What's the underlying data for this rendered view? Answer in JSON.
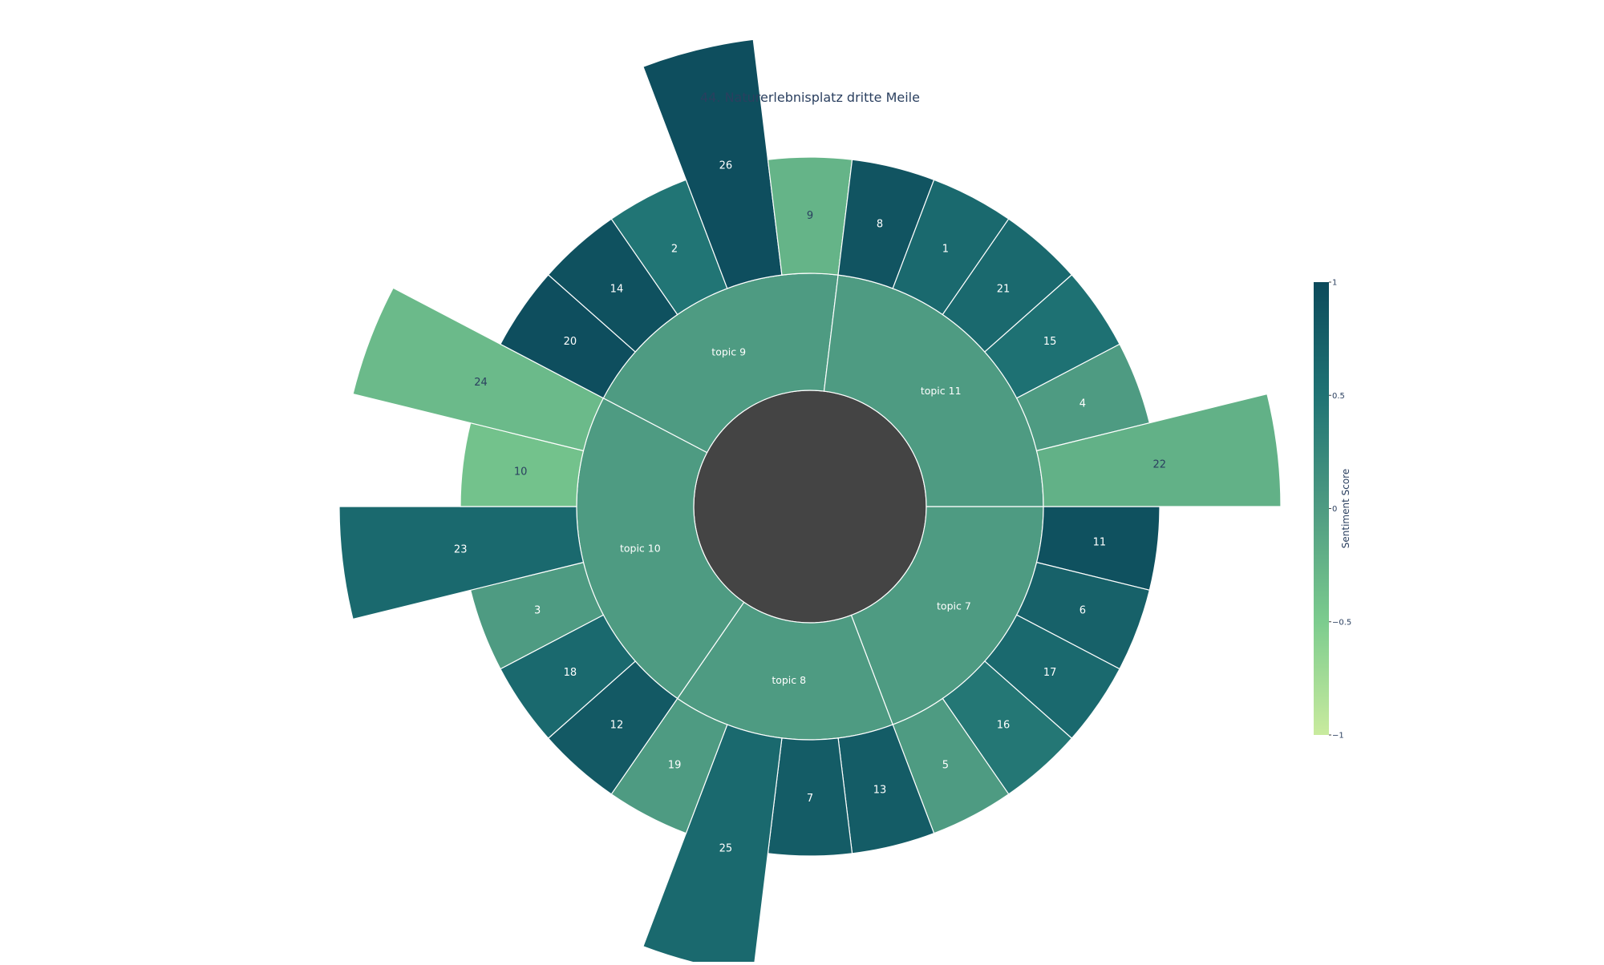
{
  "chart_data": {
    "type": "sunburst",
    "title": "44. Naturerlebnisplatz dritte Meile",
    "colorscale": {
      "title": "Sentiment Score",
      "min": -1,
      "max": 1,
      "ticks": [
        1,
        0.5,
        0,
        -0.5,
        -1
      ],
      "tick_labels": [
        "1",
        "0.5",
        "0",
        "−0.5",
        "−1"
      ],
      "stops": [
        "#c9eb9e",
        "#7ccc8e",
        "#4e9b82",
        "#1f7374",
        "#0c4a5b"
      ]
    },
    "center_color": "#444444",
    "topics": [
      {
        "label": "topic 7",
        "score": 0.0,
        "children": [
          {
            "label": "11",
            "score": 0.92,
            "extended": false
          },
          {
            "label": "6",
            "score": 0.72,
            "extended": false
          },
          {
            "label": "17",
            "score": 0.62,
            "extended": false
          },
          {
            "label": "16",
            "score": 0.45,
            "extended": false
          },
          {
            "label": "5",
            "score": 0.0,
            "extended": false
          }
        ]
      },
      {
        "label": "topic 8",
        "score": 0.0,
        "children": [
          {
            "label": "13",
            "score": 0.78,
            "extended": false
          },
          {
            "label": "7",
            "score": 0.78,
            "extended": false
          },
          {
            "label": "25",
            "score": 0.62,
            "extended": true
          },
          {
            "label": "19",
            "score": 0.0,
            "extended": false
          }
        ]
      },
      {
        "label": "topic 10",
        "score": 0.0,
        "children": [
          {
            "label": "12",
            "score": 0.82,
            "extended": false
          },
          {
            "label": "18",
            "score": 0.62,
            "extended": false
          },
          {
            "label": "3",
            "score": 0.0,
            "extended": false
          },
          {
            "label": "23",
            "score": 0.62,
            "extended": true
          },
          {
            "label": "10",
            "score": -0.4,
            "extended": false
          },
          {
            "label": "24",
            "score": -0.32,
            "extended": true
          }
        ]
      },
      {
        "label": "topic 9",
        "score": 0.0,
        "children": [
          {
            "label": "20",
            "score": 0.95,
            "extended": false
          },
          {
            "label": "14",
            "score": 0.92,
            "extended": false
          },
          {
            "label": "2",
            "score": 0.48,
            "extended": false
          },
          {
            "label": "26",
            "score": 0.95,
            "extended": true
          },
          {
            "label": "9",
            "score": -0.25,
            "extended": false
          }
        ]
      },
      {
        "label": "topic 11",
        "score": 0.0,
        "children": [
          {
            "label": "8",
            "score": 0.88,
            "extended": false
          },
          {
            "label": "1",
            "score": 0.62,
            "extended": false
          },
          {
            "label": "21",
            "score": 0.62,
            "extended": false
          },
          {
            "label": "15",
            "score": 0.52,
            "extended": false
          },
          {
            "label": "4",
            "score": 0.0,
            "extended": false
          },
          {
            "label": "22",
            "score": -0.22,
            "extended": true
          }
        ]
      }
    ]
  }
}
